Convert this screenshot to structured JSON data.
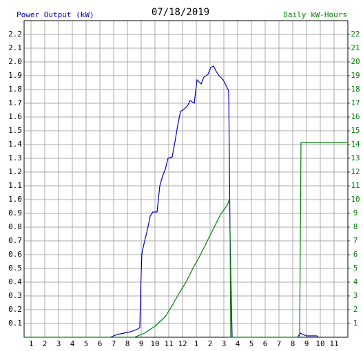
{
  "chart_data": {
    "type": "line",
    "title": "07/18/2019",
    "y_label": "Power Output (kW)",
    "y2_label": "Daily kW-Hours",
    "grid": true,
    "xlim": [
      0.5,
      24
    ],
    "xticks": [
      {
        "value": 1,
        "label": "1"
      },
      {
        "value": 2,
        "label": "2"
      },
      {
        "value": 3,
        "label": "3"
      },
      {
        "value": 4,
        "label": "4"
      },
      {
        "value": 5,
        "label": "5"
      },
      {
        "value": 6,
        "label": "6"
      },
      {
        "value": 7,
        "label": "7"
      },
      {
        "value": 8,
        "label": "8"
      },
      {
        "value": 9,
        "label": "9"
      },
      {
        "value": 10,
        "label": "10"
      },
      {
        "value": 11,
        "label": "11"
      },
      {
        "value": 12,
        "label": "12"
      },
      {
        "value": 13,
        "label": "1"
      },
      {
        "value": 14,
        "label": "2"
      },
      {
        "value": 15,
        "label": "3"
      },
      {
        "value": 16,
        "label": "4"
      },
      {
        "value": 17,
        "label": "5"
      },
      {
        "value": 18,
        "label": "6"
      },
      {
        "value": 19,
        "label": "7"
      },
      {
        "value": 20,
        "label": "8"
      },
      {
        "value": 21,
        "label": "9"
      },
      {
        "value": 22,
        "label": "10"
      },
      {
        "value": 23,
        "label": "11"
      }
    ],
    "ylim": [
      0,
      2.3
    ],
    "yticks": [
      0.1,
      0.2,
      0.3,
      0.4,
      0.5,
      0.6,
      0.7,
      0.8,
      0.9,
      {
        "value": 1,
        "label": "1.0"
      },
      1.1,
      1.2,
      1.3,
      1.4,
      1.5,
      1.6,
      1.7,
      1.8,
      1.9,
      {
        "value": 2,
        "label": "2.0"
      },
      2.1,
      2.2
    ],
    "y2lim": [
      0,
      23
    ],
    "y2ticks": [
      1,
      2,
      3,
      4,
      5,
      6,
      7,
      8,
      9,
      10,
      11,
      12,
      13,
      14,
      15,
      16,
      17,
      18,
      19,
      20,
      21,
      22
    ],
    "series": [
      {
        "name": "Power Output (kW)",
        "color": "#0000c0",
        "x": [
          6.75,
          7.0,
          7.25,
          7.75,
          8.25,
          8.75,
          8.9,
          8.95,
          9.05,
          9.25,
          9.45,
          9.65,
          9.85,
          10.15,
          10.35,
          10.55,
          10.75,
          10.95,
          11.25,
          11.45,
          11.65,
          11.85,
          12.15,
          12.35,
          12.55,
          12.85,
          13.05,
          13.35,
          13.55,
          13.85,
          14.05,
          14.25,
          14.45,
          14.65,
          14.95,
          15.25,
          15.35,
          15.4,
          15.45,
          15.5,
          15.55,
          15.6,
          18.0,
          20.35,
          20.55,
          20.75,
          21.0,
          21.75,
          21.85
        ],
        "values": [
          0.0,
          0.01,
          0.02,
          0.03,
          0.04,
          0.06,
          0.07,
          0.32,
          0.61,
          0.7,
          0.78,
          0.88,
          0.91,
          0.91,
          1.1,
          1.17,
          1.22,
          1.3,
          1.31,
          1.42,
          1.54,
          1.64,
          1.66,
          1.68,
          1.72,
          1.7,
          1.87,
          1.84,
          1.89,
          1.91,
          1.96,
          1.97,
          1.93,
          1.9,
          1.87,
          1.81,
          1.79,
          1.3,
          0.75,
          0.45,
          0.25,
          0.0,
          null,
          0.0,
          0.03,
          0.02,
          0.01,
          0.01,
          0.0
        ]
      },
      {
        "name": "Daily kW-Hours",
        "color": "#008000",
        "axis": "y2",
        "x": [
          0.5,
          8.5,
          9.25,
          10.0,
          10.75,
          11.25,
          11.75,
          12.25,
          12.75,
          13.25,
          13.75,
          14.25,
          14.75,
          15.25,
          15.4,
          15.45,
          15.5,
          20.5,
          20.55,
          20.6,
          24
        ],
        "values": [
          0,
          0,
          0.3,
          0.8,
          1.5,
          2.3,
          3.2,
          4.0,
          5.0,
          5.9,
          6.9,
          7.9,
          8.9,
          9.6,
          10.0,
          7.5,
          0,
          0,
          7.0,
          14.15,
          14.15
        ]
      }
    ]
  }
}
